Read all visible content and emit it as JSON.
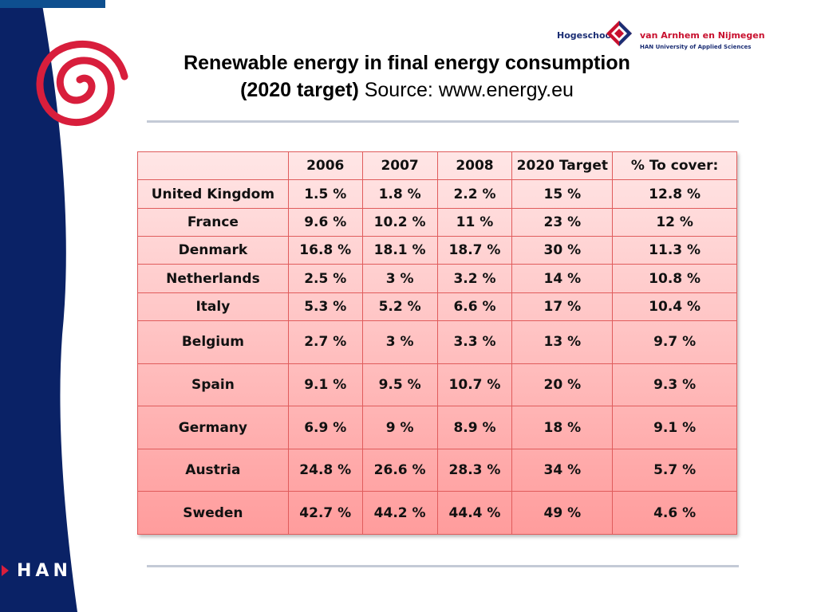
{
  "title": {
    "line1": "Renewable energy in final energy consumption",
    "line2_bold": "(2020 target)",
    "line2_rest": " Source: www.energy.eu"
  },
  "logo": {
    "left_text": "Hogeschool",
    "right_text": "van Arnhem en Nijmegen",
    "sub_text": "HAN University of Applied Sciences"
  },
  "footer_mark": "HAN",
  "colors": {
    "band_navy": "#0a2266",
    "spiral_red": "#d81e3c",
    "table_border": "#e05c5c"
  },
  "table": {
    "headers": [
      "",
      "2006",
      "2007",
      "2008",
      "2020 Target",
      "% To cover:"
    ],
    "rows": [
      [
        "United Kingdom",
        "1.5 %",
        "1.8 %",
        "2.2 %",
        "15 %",
        "12.8 %"
      ],
      [
        "France",
        "9.6 %",
        "10.2 %",
        "11 %",
        "23 %",
        "12 %"
      ],
      [
        "Denmark",
        "16.8 %",
        "18.1 %",
        "18.7 %",
        "30 %",
        "11.3 %"
      ],
      [
        "Netherlands",
        "2.5 %",
        "3 %",
        "3.2 %",
        "14 %",
        "10.8 %"
      ],
      [
        "Italy",
        "5.3 %",
        "5.2 %",
        "6.6 %",
        "17 %",
        "10.4 %"
      ],
      [
        "Belgium",
        "2.7 %",
        "3 %",
        "3.3 %",
        "13 %",
        "9.7 %"
      ],
      [
        "Spain",
        "9.1 %",
        "9.5 %",
        "10.7 %",
        "20 %",
        "9.3 %"
      ],
      [
        "Germany",
        "6.9 %",
        "9 %",
        "8.9 %",
        "18 %",
        "9.1 %"
      ],
      [
        "Austria",
        "24.8 %",
        "26.6 %",
        "28.3 %",
        "34 %",
        "5.7 %"
      ],
      [
        "Sweden",
        "42.7 %",
        "44.2 %",
        "44.4 %",
        "49 %",
        "4.6 %"
      ]
    ]
  }
}
